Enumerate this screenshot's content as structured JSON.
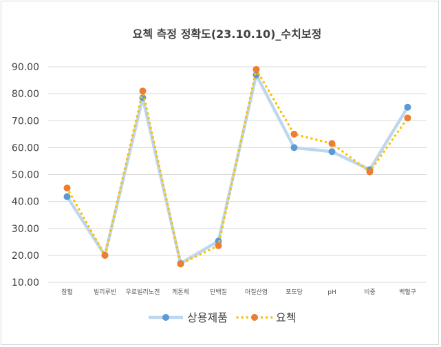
{
  "chart_data": {
    "type": "line",
    "title": "요첵 측정 정확도(23.10.10)_수치보정",
    "categories": [
      "잠혈",
      "빌리루빈",
      "우로빌리노겐",
      "케톤체",
      "단백질",
      "아질산염",
      "포도당",
      "pH",
      "비중",
      "백혈구"
    ],
    "ylim": [
      10,
      90
    ],
    "yticks": [
      "10.00",
      "20.00",
      "30.00",
      "40.00",
      "50.00",
      "60.00",
      "70.00",
      "80.00",
      "90.00"
    ],
    "grid": true,
    "legend_position": "bottom",
    "series": [
      {
        "name": "상용제품",
        "values": [
          41.8,
          20.0,
          78.5,
          17.0,
          25.3,
          87.0,
          60.0,
          58.5,
          51.8,
          75.0
        ],
        "color": "#bdd7ee",
        "marker_color": "#5b9bd5",
        "style": "solid"
      },
      {
        "name": "요첵",
        "values": [
          45.0,
          20.0,
          81.0,
          16.8,
          23.6,
          89.0,
          65.0,
          61.5,
          51.0,
          71.0
        ],
        "color": "#ffc000",
        "marker_color": "#ed7d31",
        "style": "dotted"
      }
    ]
  }
}
